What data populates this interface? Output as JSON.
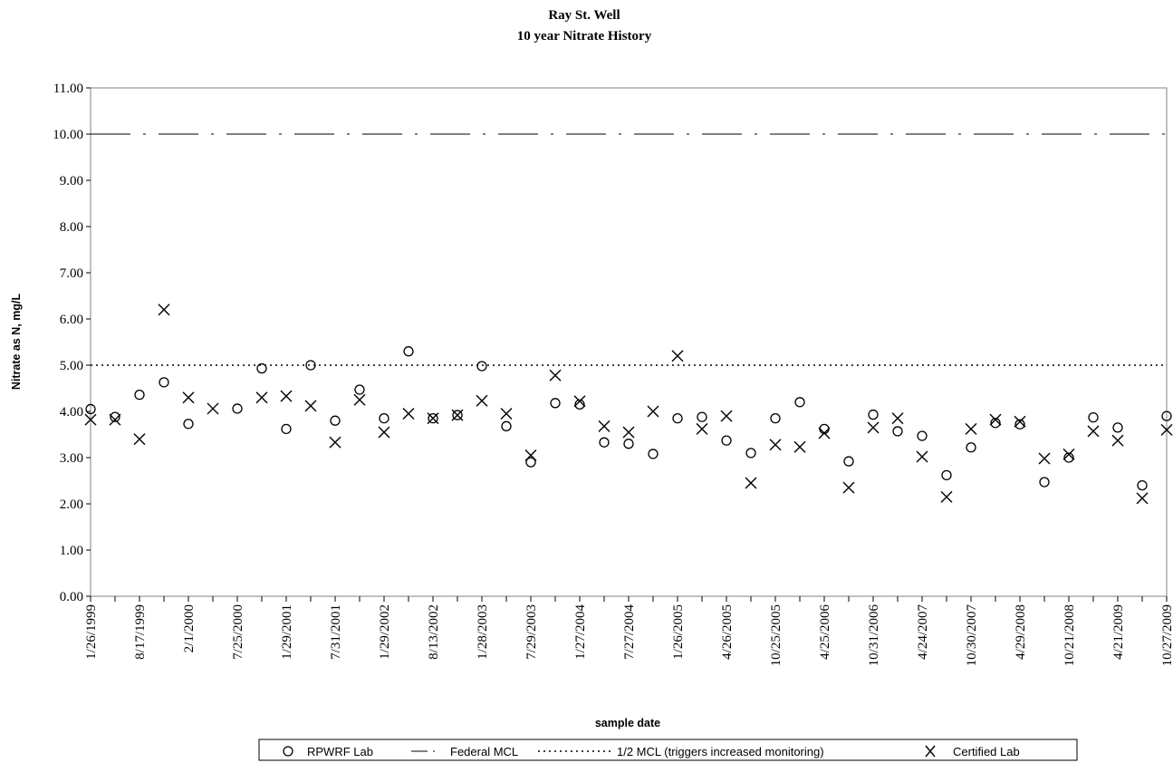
{
  "chart_data": {
    "type": "scatter",
    "title": "Ray St. Well",
    "subtitle": "10 year Nitrate History",
    "xlabel": "sample date",
    "ylabel": "Nitrate as N, mg/L",
    "ylim": [
      0,
      11
    ],
    "yticks": [
      "0.00",
      "1.00",
      "2.00",
      "3.00",
      "4.00",
      "5.00",
      "6.00",
      "7.00",
      "8.00",
      "9.00",
      "10.00",
      "11.00"
    ],
    "xticks": [
      "1/26/1999",
      "8/17/1999",
      "2/1/2000",
      "7/25/2000",
      "1/29/2001",
      "7/31/2001",
      "1/29/2002",
      "8/13/2002",
      "1/28/2003",
      "7/29/2003",
      "1/27/2004",
      "7/27/2004",
      "1/26/2005",
      "4/26/2005",
      "10/25/2005",
      "4/25/2006",
      "10/31/2006",
      "4/24/2007",
      "10/30/2007",
      "4/29/2008",
      "10/21/2008",
      "4/21/2009",
      "10/27/2009"
    ],
    "x_positions": 45,
    "series": [
      {
        "name": "RPWRF Lab",
        "marker": "circle",
        "values": [
          4.05,
          3.88,
          4.36,
          4.63,
          3.73,
          null,
          4.06,
          4.93,
          3.62,
          5.0,
          3.8,
          4.47,
          3.85,
          5.3,
          3.85,
          3.92,
          4.98,
          3.68,
          2.9,
          4.18,
          4.15,
          3.33,
          3.3,
          3.08,
          3.85,
          3.88,
          3.37,
          3.1,
          3.85,
          4.2,
          3.62,
          2.92,
          3.93,
          3.57,
          3.47,
          2.62,
          3.22,
          3.75,
          3.72,
          2.47,
          3.0,
          3.87,
          3.65,
          2.4,
          3.9
        ]
      },
      {
        "name": "Certified Lab",
        "marker": "x",
        "values": [
          3.82,
          3.82,
          3.4,
          6.2,
          4.3,
          4.06,
          null,
          4.3,
          4.33,
          4.12,
          3.33,
          4.25,
          3.55,
          3.95,
          3.85,
          3.92,
          4.23,
          3.95,
          3.05,
          4.78,
          4.22,
          3.68,
          3.55,
          4.0,
          5.2,
          3.62,
          3.9,
          2.45,
          3.28,
          3.23,
          3.53,
          2.35,
          3.65,
          3.85,
          3.02,
          2.15,
          3.62,
          3.82,
          3.78,
          2.98,
          3.07,
          3.57,
          3.37,
          2.12,
          3.6
        ]
      }
    ],
    "reference_lines": [
      {
        "name": "Federal MCL",
        "y": 10.0,
        "style": "dash-dot"
      },
      {
        "name": "1/2 MCL (triggers increased monitoring)",
        "y": 5.0,
        "style": "dotted"
      }
    ],
    "legend": {
      "placement": "bottom",
      "items": [
        "RPWRF Lab",
        "Federal MCL",
        "1/2 MCL (triggers increased monitoring)",
        "Certified Lab"
      ]
    },
    "grid": false
  }
}
